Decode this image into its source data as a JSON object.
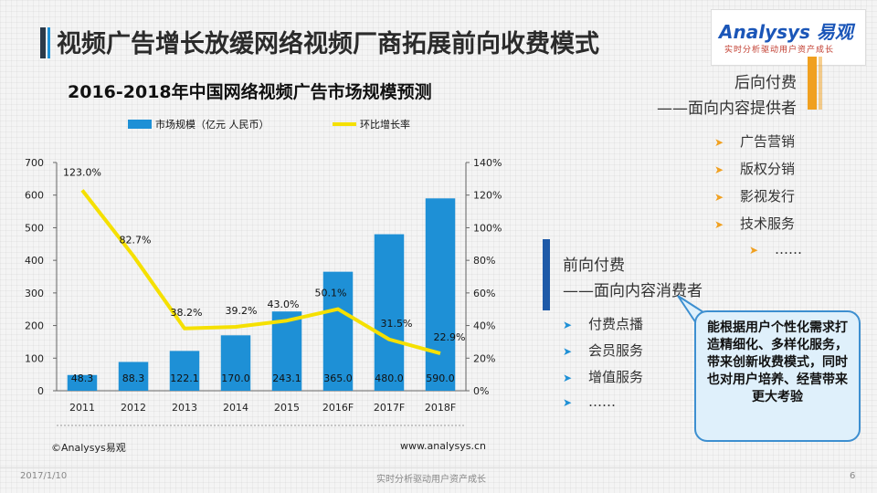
{
  "slide": {
    "title": "视频广告增长放缓网络视频厂商拓展前向收费模式",
    "date": "2017/1/10",
    "slogan": "实时分析驱动用户资产成长",
    "page": "6",
    "source": "©Analysys易观",
    "url": "www.analysys.cn"
  },
  "logo": {
    "main": "Analysys",
    "main_cn": "易观",
    "sub": "实时分析驱动用户资产成长",
    "color": "#1b56b8"
  },
  "back_revenue": {
    "title": "后向付费",
    "subtitle": "——面向内容提供者",
    "items": [
      "广告营销",
      "版权分销",
      "影视发行",
      "技术服务",
      "……"
    ],
    "accent": "#f0a020"
  },
  "front_revenue": {
    "title": "前向付费",
    "subtitle": "——面向内容消费者",
    "items": [
      "付费点播",
      "会员服务",
      "增值服务",
      "……"
    ],
    "accent": "#1e5aa8"
  },
  "callout": {
    "text": "能根据用户个性化需求打造精细化、多样化服务，带来创新收费模式，同时也对用户培养、经营带来更大考验"
  },
  "chart_data": {
    "type": "bar+line",
    "title": "2016-2018年中国网络视频广告市场规模预测",
    "categories": [
      "2011",
      "2012",
      "2013",
      "2014",
      "2015",
      "2016F",
      "2017F",
      "2018F"
    ],
    "series": [
      {
        "name": "市场规模（亿元 人民币）",
        "type": "bar",
        "axis": "left",
        "values": [
          48.3,
          88.3,
          122.1,
          170.0,
          243.1,
          365.0,
          480.0,
          590.0
        ],
        "labels": [
          "48.3",
          "88.3",
          "122.1",
          "170.0",
          "243.1",
          "365.0",
          "480.0",
          "590.0"
        ],
        "color": "#1e90d6"
      },
      {
        "name": "环比增长率",
        "type": "line",
        "axis": "right",
        "values": [
          123.0,
          82.7,
          38.2,
          39.2,
          43.0,
          50.1,
          31.5,
          22.9
        ],
        "labels": [
          "123.0%",
          "82.7%",
          "38.2%",
          "39.2%",
          "43.0%",
          "50.1%",
          "31.5%",
          "22.9%"
        ],
        "color": "#f5e000"
      }
    ],
    "ylim_left": [
      0,
      700
    ],
    "yticks_left": [
      "0",
      "100",
      "200",
      "300",
      "400",
      "500",
      "600",
      "700"
    ],
    "ylim_right": [
      0,
      140
    ],
    "yticks_right": [
      "0%",
      "20%",
      "40%",
      "60%",
      "80%",
      "100%",
      "120%",
      "140%"
    ],
    "legend_position": "top",
    "grid": false
  }
}
